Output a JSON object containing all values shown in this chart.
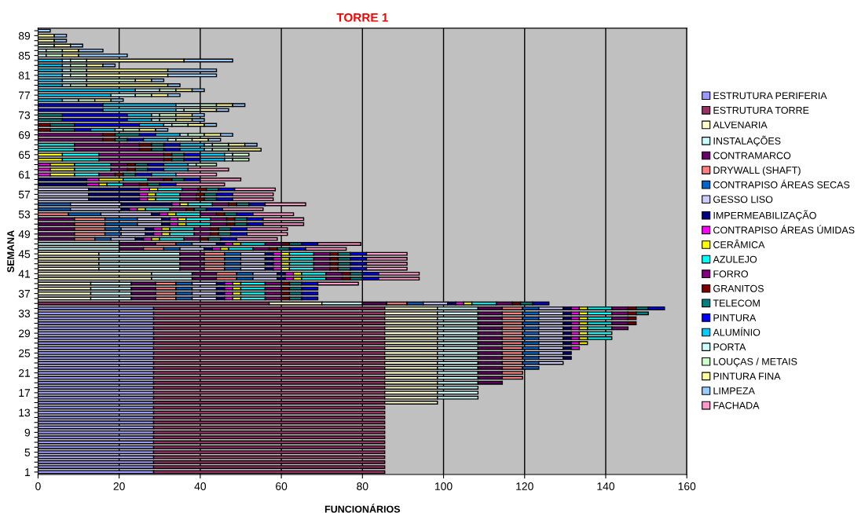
{
  "chart_data": {
    "type": "bar",
    "orientation": "horizontal",
    "stacked": true,
    "title": "TORRE 1",
    "xlabel": "FUNCIONÁRIOS",
    "ylabel": "SEMANA",
    "categories": [
      null,
      "89",
      null,
      null,
      null,
      "85",
      null,
      null,
      null,
      "81",
      null,
      null,
      null,
      "77",
      null,
      null,
      null,
      "73",
      null,
      null,
      null,
      "69",
      null,
      null,
      null,
      "65",
      null,
      null,
      null,
      "61",
      null,
      null,
      null,
      "57",
      null,
      null,
      null,
      "53",
      null,
      null,
      null,
      "49",
      null,
      null,
      null,
      "45",
      null,
      null,
      null,
      "41",
      null,
      null,
      null,
      "37",
      null,
      null,
      null,
      "33",
      null,
      null,
      null,
      "29",
      null,
      null,
      null,
      "25",
      null,
      null,
      null,
      "21",
      null,
      null,
      null,
      "17",
      null,
      null,
      null,
      "13",
      null,
      null,
      null,
      "9",
      null,
      null,
      null,
      "5",
      null,
      null,
      null,
      "1"
    ],
    "xlim": [
      0,
      160
    ],
    "xticks": [
      0,
      20,
      40,
      60,
      80,
      100,
      120,
      140,
      160
    ],
    "grid": "x",
    "legend": "right",
    "series": [
      {
        "name": "ESTRUTURA PERIFERIA",
        "color": "#9999ff",
        "values": [
          null,
          null,
          null,
          null,
          null,
          null,
          null,
          null,
          null,
          null,
          null,
          null,
          null,
          null,
          null,
          null,
          null,
          null,
          null,
          null,
          null,
          null,
          null,
          null,
          null,
          null,
          null,
          null,
          null,
          null,
          null,
          null,
          null,
          null,
          null,
          null,
          null,
          null,
          null,
          null,
          null,
          null,
          null,
          null,
          null,
          null,
          null,
          null,
          null,
          null,
          null,
          null,
          null,
          null,
          null,
          null,
          28.5,
          28.5,
          28.5,
          28.5,
          28.5,
          28.5,
          28.5,
          28.5,
          28.5,
          28.5,
          28.5,
          28.5,
          28.5,
          28.5,
          28.5,
          28.5,
          28.5,
          28.5,
          28.5,
          28.5,
          28.5,
          28.5,
          28.5,
          28.5,
          28.5,
          28.5,
          28.5,
          28.5,
          28.5,
          28.5,
          28.5,
          28.5,
          28.5,
          28.5
        ]
      },
      {
        "name": "ESTRUTURA TORRE",
        "color": "#993366",
        "values": [
          null,
          null,
          null,
          null,
          null,
          null,
          null,
          null,
          null,
          null,
          null,
          null,
          null,
          null,
          null,
          null,
          null,
          null,
          null,
          null,
          null,
          null,
          null,
          null,
          null,
          null,
          null,
          null,
          null,
          null,
          null,
          null,
          null,
          null,
          null,
          null,
          null,
          null,
          null,
          null,
          null,
          null,
          null,
          null,
          null,
          null,
          null,
          null,
          null,
          null,
          null,
          null,
          null,
          null,
          null,
          57,
          57,
          57,
          57,
          57,
          57,
          57,
          57,
          57,
          57,
          57,
          57,
          57,
          57,
          57,
          57,
          57,
          57,
          57,
          57,
          57,
          57,
          57,
          57,
          57,
          57,
          57,
          57,
          57,
          57,
          57,
          57,
          57,
          57,
          57
        ]
      },
      {
        "name": "ALVENARIA",
        "color": "#ffffcc",
        "values": [
          null,
          null,
          null,
          null,
          null,
          null,
          null,
          null,
          null,
          null,
          null,
          null,
          null,
          null,
          null,
          null,
          null,
          null,
          null,
          null,
          null,
          null,
          null,
          null,
          null,
          null,
          null,
          null,
          null,
          null,
          null,
          null,
          null,
          null,
          null,
          null,
          null,
          null,
          null,
          null,
          null,
          null,
          null,
          null,
          null,
          15,
          15,
          15,
          15,
          28,
          28,
          13,
          13,
          13,
          13,
          13,
          13,
          13,
          13,
          13,
          13,
          13,
          13,
          13,
          13,
          13,
          13,
          13,
          13,
          13,
          13,
          13,
          13,
          13,
          13,
          13,
          null,
          null,
          null,
          null,
          null,
          null,
          null,
          null,
          null,
          null,
          null,
          null,
          null,
          null
        ]
      },
      {
        "name": "INSTALAÇÕES",
        "color": "#ccffff",
        "values": [
          null,
          null,
          null,
          null,
          null,
          null,
          null,
          null,
          null,
          null,
          null,
          null,
          null,
          null,
          null,
          null,
          null,
          null,
          null,
          null,
          null,
          null,
          null,
          null,
          null,
          null,
          null,
          null,
          null,
          null,
          null,
          null,
          null,
          null,
          null,
          null,
          null,
          null,
          null,
          null,
          null,
          null,
          null,
          20,
          20,
          20,
          20,
          20,
          20,
          10,
          10,
          10,
          10,
          10,
          10,
          10,
          10,
          10,
          10,
          10,
          10,
          10,
          10,
          10,
          10,
          10,
          10,
          10,
          10,
          10,
          10,
          10,
          10,
          10,
          10,
          null,
          null,
          null,
          null,
          null,
          null,
          null,
          null,
          null,
          null,
          null,
          null,
          null,
          null,
          null
        ]
      },
      {
        "name": "CONTRAMARCO",
        "color": "#660066",
        "values": [
          null,
          null,
          null,
          null,
          null,
          null,
          null,
          null,
          null,
          null,
          null,
          null,
          null,
          null,
          null,
          null,
          null,
          null,
          null,
          null,
          null,
          null,
          null,
          null,
          null,
          null,
          null,
          null,
          null,
          null,
          null,
          null,
          null,
          null,
          null,
          null,
          null,
          null,
          9,
          9,
          9,
          9,
          9,
          9,
          6,
          6,
          6,
          6,
          6,
          6,
          6,
          6,
          6,
          6,
          6,
          6,
          6,
          6,
          6,
          6,
          6,
          6,
          6,
          6,
          6,
          6,
          6,
          6,
          6,
          6,
          6,
          6,
          null,
          null,
          null,
          null,
          null,
          null,
          null,
          null,
          null,
          null,
          null,
          null,
          null,
          null,
          null,
          null,
          null,
          null
        ]
      },
      {
        "name": "DRYWALL (SHAFT)",
        "color": "#ff8080",
        "values": [
          null,
          null,
          null,
          null,
          null,
          null,
          null,
          null,
          null,
          null,
          null,
          null,
          null,
          null,
          null,
          null,
          null,
          null,
          null,
          null,
          null,
          null,
          null,
          null,
          null,
          null,
          null,
          null,
          null,
          null,
          null,
          null,
          null,
          null,
          null,
          null,
          null,
          7.5,
          7.5,
          7.5,
          7.5,
          7.5,
          5,
          5,
          5,
          5,
          5,
          5,
          5,
          5,
          5,
          5,
          5,
          5,
          5,
          5,
          5,
          5,
          5,
          5,
          5,
          5,
          5,
          5,
          5,
          5,
          5,
          5,
          5,
          5,
          5,
          null,
          null,
          null,
          null,
          null,
          null,
          null,
          null,
          null,
          null,
          null,
          null,
          null,
          null,
          null,
          null,
          null,
          null,
          null
        ]
      },
      {
        "name": "CONTRAPISO ÁREAS SECAS",
        "color": "#0066cc",
        "values": [
          null,
          null,
          null,
          null,
          null,
          null,
          null,
          null,
          null,
          null,
          null,
          null,
          null,
          null,
          null,
          null,
          null,
          null,
          null,
          null,
          null,
          null,
          null,
          null,
          null,
          null,
          null,
          null,
          null,
          null,
          null,
          null,
          null,
          null,
          null,
          8,
          8,
          8,
          8,
          8,
          4,
          4,
          4,
          4,
          4,
          4,
          4,
          4,
          4,
          4,
          4,
          4,
          4,
          4,
          4,
          4,
          4,
          4,
          4,
          4,
          4,
          4,
          4,
          4,
          4,
          4,
          4,
          4,
          4,
          null,
          null,
          null,
          null,
          null,
          null,
          null,
          null,
          null,
          null,
          null,
          null,
          null,
          null,
          null,
          null,
          null,
          null,
          null,
          null,
          null
        ]
      },
      {
        "name": "GESSO LISO",
        "color": "#ccccff",
        "values": [
          null,
          null,
          null,
          null,
          null,
          null,
          null,
          null,
          null,
          null,
          null,
          null,
          null,
          null,
          null,
          null,
          null,
          null,
          null,
          null,
          null,
          null,
          null,
          null,
          null,
          null,
          null,
          null,
          null,
          null,
          null,
          null,
          12.5,
          12.5,
          12.5,
          12.5,
          12.5,
          12.5,
          6,
          6,
          6,
          6,
          6,
          6,
          6,
          6,
          6,
          6,
          6,
          6,
          6,
          6,
          6,
          6,
          6,
          6,
          6,
          6,
          6,
          6,
          6,
          6,
          6,
          6,
          6,
          6,
          6,
          6,
          null,
          null,
          null,
          null,
          null,
          null,
          null,
          null,
          null,
          null,
          null,
          null,
          null,
          null,
          null,
          null,
          null,
          null,
          null,
          null,
          null,
          null
        ]
      },
      {
        "name": "IMPERMEABILIZAÇÃO",
        "color": "#000080",
        "values": [
          null,
          null,
          null,
          null,
          null,
          null,
          null,
          null,
          null,
          null,
          null,
          null,
          null,
          null,
          null,
          null,
          null,
          null,
          null,
          null,
          null,
          null,
          null,
          null,
          null,
          null,
          null,
          null,
          null,
          null,
          12,
          12,
          12.5,
          12.5,
          12.5,
          12.5,
          2,
          2,
          2,
          2,
          2,
          2,
          2,
          2,
          2,
          2,
          2,
          2,
          2,
          2,
          2,
          2,
          2,
          2,
          2,
          2,
          2,
          2,
          2,
          2,
          2,
          2,
          2,
          2,
          2,
          2,
          2,
          null,
          null,
          null,
          null,
          null,
          null,
          null,
          null,
          null,
          null,
          null,
          null,
          null,
          null,
          null,
          null,
          null,
          null,
          null,
          null,
          null,
          null,
          null
        ]
      },
      {
        "name": "CONTRAPISO ÁREAS ÚMIDAS",
        "color": "#ff00ff",
        "values": [
          null,
          null,
          null,
          null,
          null,
          null,
          null,
          null,
          null,
          null,
          null,
          null,
          null,
          null,
          null,
          null,
          null,
          null,
          null,
          null,
          null,
          null,
          null,
          null,
          null,
          null,
          null,
          3,
          3,
          3,
          3,
          3,
          2.5,
          2,
          2,
          2,
          2,
          2,
          2,
          2,
          2,
          2,
          2,
          2,
          2,
          2,
          2,
          2,
          2,
          2,
          2,
          2,
          2,
          2,
          2,
          2,
          2,
          2,
          2,
          2,
          2,
          2,
          2,
          2,
          2,
          null,
          null,
          null,
          null,
          null,
          null,
          null,
          null,
          null,
          null,
          null,
          null,
          null,
          null,
          null,
          null,
          null,
          null,
          null,
          null,
          null,
          null,
          null,
          null,
          null
        ]
      },
      {
        "name": "CERÂMICA",
        "color": "#ffff00",
        "values": [
          null,
          null,
          null,
          null,
          null,
          null,
          null,
          null,
          null,
          null,
          null,
          null,
          null,
          null,
          null,
          null,
          null,
          null,
          null,
          null,
          null,
          null,
          null,
          null,
          null,
          6,
          6,
          6,
          6,
          6,
          6,
          2,
          2,
          2,
          2,
          2,
          2,
          2,
          2,
          2,
          2,
          2,
          2,
          2,
          2,
          2,
          2,
          2,
          2,
          2,
          2,
          2,
          2,
          2,
          2,
          2,
          2,
          2,
          2,
          2,
          2,
          2,
          2,
          2,
          null,
          null,
          null,
          null,
          null,
          null,
          null,
          null,
          null,
          null,
          null,
          null,
          null,
          null,
          null,
          null,
          null,
          null,
          null,
          null,
          null,
          null,
          null,
          null,
          null,
          null
        ]
      },
      {
        "name": "AZULEJO",
        "color": "#00ffff",
        "values": [
          null,
          null,
          null,
          null,
          null,
          null,
          null,
          null,
          null,
          null,
          null,
          null,
          null,
          null,
          null,
          null,
          null,
          null,
          null,
          null,
          null,
          null,
          null,
          9,
          9,
          9,
          9,
          9,
          9,
          6,
          6,
          4,
          6,
          6,
          6,
          6,
          6,
          6,
          6,
          6,
          6,
          6,
          6,
          6,
          6,
          6,
          6,
          6,
          6,
          6,
          6,
          6,
          6,
          6,
          6,
          6,
          6,
          6,
          6,
          6,
          6,
          6,
          6,
          null,
          null,
          null,
          null,
          null,
          null,
          null,
          null,
          null,
          null,
          null,
          null,
          null,
          null,
          null,
          null,
          null,
          null,
          null,
          null,
          null,
          null,
          null,
          null,
          null,
          null,
          null
        ]
      },
      {
        "name": "FORRO",
        "color": "#800080",
        "values": [
          null,
          null,
          null,
          null,
          null,
          null,
          null,
          null,
          null,
          null,
          null,
          null,
          null,
          null,
          null,
          null,
          null,
          null,
          null,
          null,
          null,
          16,
          16,
          16,
          16,
          16,
          16,
          4,
          4,
          4,
          4,
          4,
          4,
          4,
          4,
          4,
          4,
          4,
          4,
          4,
          4,
          4,
          4,
          4,
          4,
          4,
          4,
          4,
          4,
          4,
          4,
          4,
          4,
          4,
          4,
          4,
          4,
          4,
          4,
          4,
          4,
          null,
          null,
          null,
          null,
          null,
          null,
          null,
          null,
          null,
          null,
          null,
          null,
          null,
          null,
          null,
          null,
          null,
          null,
          null,
          null,
          null,
          null,
          null,
          null,
          null,
          null,
          null,
          null,
          null
        ]
      },
      {
        "name": "GRANITOS",
        "color": "#800000",
        "values": [
          null,
          null,
          null,
          null,
          null,
          null,
          null,
          null,
          null,
          null,
          null,
          null,
          null,
          null,
          null,
          null,
          null,
          null,
          null,
          3,
          3,
          3,
          3,
          3,
          3,
          2,
          2,
          2,
          2,
          2,
          2,
          2,
          2,
          2,
          2,
          2,
          2,
          2,
          2,
          2,
          2,
          2,
          2,
          2,
          2,
          2,
          2,
          2,
          2,
          2,
          2,
          2,
          2,
          2,
          2,
          2,
          2,
          2,
          2,
          2,
          null,
          null,
          null,
          null,
          null,
          null,
          null,
          null,
          null,
          null,
          null,
          null,
          null,
          null,
          null,
          null,
          null,
          null,
          null,
          null,
          null,
          null,
          null,
          null,
          null,
          null,
          null,
          null,
          null,
          null
        ]
      },
      {
        "name": "TELECOM",
        "color": "#008080",
        "values": [
          null,
          null,
          null,
          null,
          null,
          null,
          null,
          null,
          null,
          null,
          null,
          null,
          null,
          null,
          null,
          null,
          null,
          6,
          6,
          6,
          6,
          6,
          3,
          3,
          3,
          3,
          3,
          3,
          3,
          3,
          3,
          3,
          3,
          3,
          3,
          3,
          3,
          3,
          3,
          3,
          3,
          3,
          3,
          3,
          3,
          3,
          3,
          3,
          3,
          3,
          3,
          3,
          3,
          3,
          3,
          3,
          3,
          3,
          null,
          null,
          null,
          null,
          null,
          null,
          null,
          null,
          null,
          null,
          null,
          null,
          null,
          null,
          null,
          null,
          null,
          null,
          null,
          null,
          null,
          null,
          null,
          null,
          null,
          null,
          null,
          null,
          null,
          null,
          null,
          null
        ]
      },
      {
        "name": "PINTURA",
        "color": "#0000ff",
        "values": [
          null,
          null,
          null,
          null,
          null,
          null,
          null,
          null,
          null,
          null,
          null,
          null,
          null,
          null,
          null,
          16,
          16,
          16,
          16,
          16,
          4,
          4,
          4,
          4,
          4,
          4,
          4,
          4,
          4,
          4,
          4,
          4,
          4,
          4,
          4,
          4,
          4,
          4,
          4,
          4,
          4,
          4,
          4,
          4,
          4,
          4,
          4,
          4,
          4,
          4,
          4,
          4,
          4,
          4,
          4,
          4,
          4,
          null,
          null,
          null,
          null,
          null,
          null,
          null,
          null,
          null,
          null,
          null,
          null,
          null,
          null,
          null,
          null,
          null,
          null,
          null,
          null,
          null,
          null,
          null,
          null,
          null,
          null,
          null,
          null,
          null,
          null,
          null,
          null,
          null
        ]
      },
      {
        "name": "ALUMÍNIO",
        "color": "#00ccff",
        "values": [
          null,
          null,
          null,
          null,
          null,
          null,
          6,
          6,
          6,
          6,
          6,
          6,
          24,
          18,
          6,
          18,
          18,
          6,
          6,
          6,
          6,
          6,
          6,
          6,
          6,
          6,
          6,
          6,
          6,
          6,
          null,
          null,
          null,
          null,
          null,
          null,
          null,
          null,
          null,
          null,
          null,
          null,
          null,
          null,
          null,
          null,
          null,
          null,
          null,
          null,
          null,
          null,
          null,
          null,
          null,
          null,
          null,
          null,
          null,
          null,
          null,
          null,
          null,
          null,
          null,
          null,
          null,
          null,
          null,
          null,
          null,
          null,
          null,
          null,
          null,
          null,
          null,
          null,
          null,
          null,
          null,
          null,
          null,
          null,
          null,
          null,
          null,
          null,
          null,
          null
        ]
      },
      {
        "name": "PORTA",
        "color": "#ccffff",
        "values": [
          null,
          null,
          null,
          null,
          2,
          2,
          2,
          2,
          2,
          2,
          6,
          2,
          6,
          6,
          4,
          6,
          2,
          2,
          2,
          2,
          2,
          2,
          2,
          2,
          2,
          2,
          2,
          2,
          null,
          null,
          null,
          null,
          null,
          null,
          null,
          null,
          null,
          null,
          null,
          null,
          null,
          null,
          null,
          null,
          null,
          null,
          null,
          null,
          null,
          null,
          null,
          null,
          null,
          null,
          null,
          null,
          null,
          null,
          null,
          null,
          null,
          null,
          null,
          null,
          null,
          null,
          null,
          null,
          null,
          null,
          null,
          null,
          null,
          null,
          null,
          null,
          null,
          null,
          null,
          null,
          null,
          null,
          null,
          null,
          null,
          null,
          null,
          null,
          null,
          null
        ]
      },
      {
        "name": "LOUÇAS / METAIS",
        "color": "#ccffcc",
        "values": [
          null,
          null,
          null,
          4,
          4,
          4,
          4,
          4,
          4,
          4,
          12,
          4,
          4,
          4,
          4,
          4,
          4,
          4,
          4,
          4,
          4,
          4,
          4,
          4,
          4,
          4,
          4,
          5,
          null,
          null,
          null,
          null,
          null,
          null,
          null,
          null,
          null,
          null,
          null,
          null,
          null,
          null,
          null,
          null,
          null,
          null,
          null,
          null,
          null,
          null,
          null,
          null,
          null,
          null,
          null,
          null,
          null,
          null,
          null,
          null,
          null,
          null,
          null,
          null,
          null,
          null,
          null,
          null,
          null,
          null,
          null,
          null,
          null,
          null,
          null,
          null,
          null,
          null,
          null,
          null,
          null,
          null,
          null,
          null,
          null,
          null,
          null,
          null,
          null,
          null
        ]
      },
      {
        "name": "PINTURA FINA",
        "color": "#ffff99",
        "values": [
          null,
          4,
          4,
          4,
          4,
          4,
          24,
          4,
          20,
          20,
          4,
          20,
          4,
          4,
          4,
          4,
          4,
          4,
          4,
          4,
          4,
          4,
          4,
          4,
          8,
          null,
          null,
          null,
          null,
          null,
          null,
          null,
          null,
          null,
          null,
          null,
          null,
          null,
          null,
          null,
          null,
          null,
          null,
          null,
          null,
          null,
          null,
          null,
          null,
          null,
          null,
          null,
          null,
          null,
          null,
          null,
          null,
          null,
          null,
          null,
          null,
          null,
          null,
          null,
          null,
          null,
          null,
          null,
          null,
          null,
          null,
          null,
          null,
          null,
          null,
          null,
          null,
          null,
          null,
          null,
          null,
          null,
          null,
          null,
          null,
          null,
          null,
          null,
          null,
          null
        ]
      },
      {
        "name": "LIMPEZA",
        "color": "#99ccff",
        "values": [
          3,
          3,
          3,
          3,
          6,
          12,
          12,
          3,
          12,
          12,
          3,
          3,
          3,
          3,
          3,
          3,
          3,
          3,
          3,
          3,
          3,
          3,
          3,
          3,
          null,
          null,
          null,
          null,
          null,
          null,
          null,
          null,
          null,
          null,
          null,
          null,
          null,
          null,
          null,
          null,
          null,
          null,
          null,
          null,
          null,
          null,
          null,
          null,
          null,
          null,
          null,
          null,
          null,
          null,
          null,
          null,
          null,
          null,
          null,
          null,
          null,
          null,
          null,
          null,
          null,
          null,
          null,
          null,
          null,
          null,
          null,
          null,
          null,
          null,
          null,
          null,
          null,
          null,
          null,
          null,
          null,
          null,
          null,
          null,
          null,
          null,
          null,
          null,
          null,
          null
        ]
      },
      {
        "name": "FACHADA",
        "color": "#ff99cc",
        "values": [
          null,
          null,
          null,
          null,
          null,
          null,
          null,
          null,
          null,
          null,
          null,
          null,
          null,
          null,
          null,
          null,
          null,
          null,
          null,
          null,
          null,
          null,
          null,
          null,
          null,
          null,
          null,
          null,
          10,
          10,
          10,
          12,
          10,
          10,
          10,
          10,
          10,
          10,
          10,
          10,
          10,
          10,
          10,
          10.6,
          10,
          10,
          10,
          10,
          10,
          10,
          10,
          10,
          null,
          null,
          null,
          null,
          null,
          null,
          null,
          null,
          null,
          null,
          null,
          null,
          null,
          null,
          null,
          null,
          null,
          null,
          null,
          null,
          null,
          null,
          null,
          null,
          null,
          null,
          null,
          null,
          null,
          null,
          null,
          null,
          null,
          null,
          null,
          null,
          null,
          null
        ]
      }
    ]
  }
}
